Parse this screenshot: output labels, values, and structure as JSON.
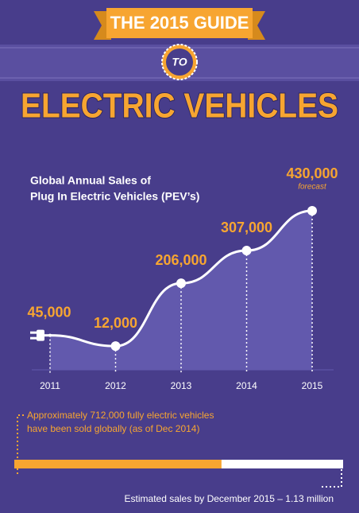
{
  "header": {
    "line1": "THE 2015 GUIDE",
    "badge": "TO",
    "title": "ELECTRIC VEHICLES"
  },
  "chart_data": {
    "type": "line",
    "title_lines": [
      "Global Annual Sales of",
      "Plug In Electric Vehicles (PEV’s)"
    ],
    "categories": [
      "2011",
      "2012",
      "2013",
      "2014",
      "2015"
    ],
    "values": [
      45000,
      12000,
      206000,
      307000,
      430000
    ],
    "value_labels": [
      "45,000",
      "12,000",
      "206,000",
      "307,000",
      "430,000"
    ],
    "annotation": "forecast",
    "color": "#ffffff",
    "label_color": "#f7a531"
  },
  "note_lines": [
    "Approximately 712,000 fully electric vehicles",
    "have been sold globally (as of Dec 2014)"
  ],
  "progress": {
    "value": 712000,
    "max": 1130000
  },
  "footer": "Estimated sales by December 2015 – 1.13 million"
}
